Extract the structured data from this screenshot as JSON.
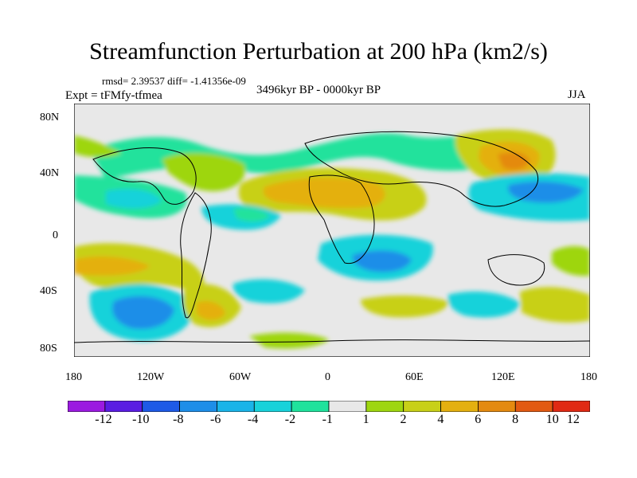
{
  "title": "Streamfunction Perturbation at 200 hPa (km2/s)",
  "stats": "rmsd= 2.39537 diff= -1.41356e-09",
  "experiment": "Expt = tFMfy-tfmea",
  "period": "3496kyr BP - 0000kyr BP",
  "season": "JJA",
  "lat_labels": [
    "80N",
    "40N",
    "0",
    "40S",
    "80S"
  ],
  "lon_labels": [
    "180",
    "120W",
    "60W",
    "0",
    "60E",
    "120E",
    "180"
  ],
  "colorbar": {
    "labels": [
      "-12",
      "-10",
      "-8",
      "-6",
      "-4",
      "-2",
      "-1",
      "1",
      "2",
      "4",
      "6",
      "8",
      "10",
      "12"
    ],
    "colors": [
      "#9b1be0",
      "#5a1de2",
      "#1e5ae6",
      "#1e8ee8",
      "#1ab4e8",
      "#18d2da",
      "#20e29c",
      "#e8e8e8",
      "#9ed610",
      "#c8d018",
      "#e4b010",
      "#e48a10",
      "#e25a12",
      "#e02a14"
    ]
  },
  "colors": {
    "ocean_neutral": "#e8e8e8",
    "coast": "#000000"
  }
}
